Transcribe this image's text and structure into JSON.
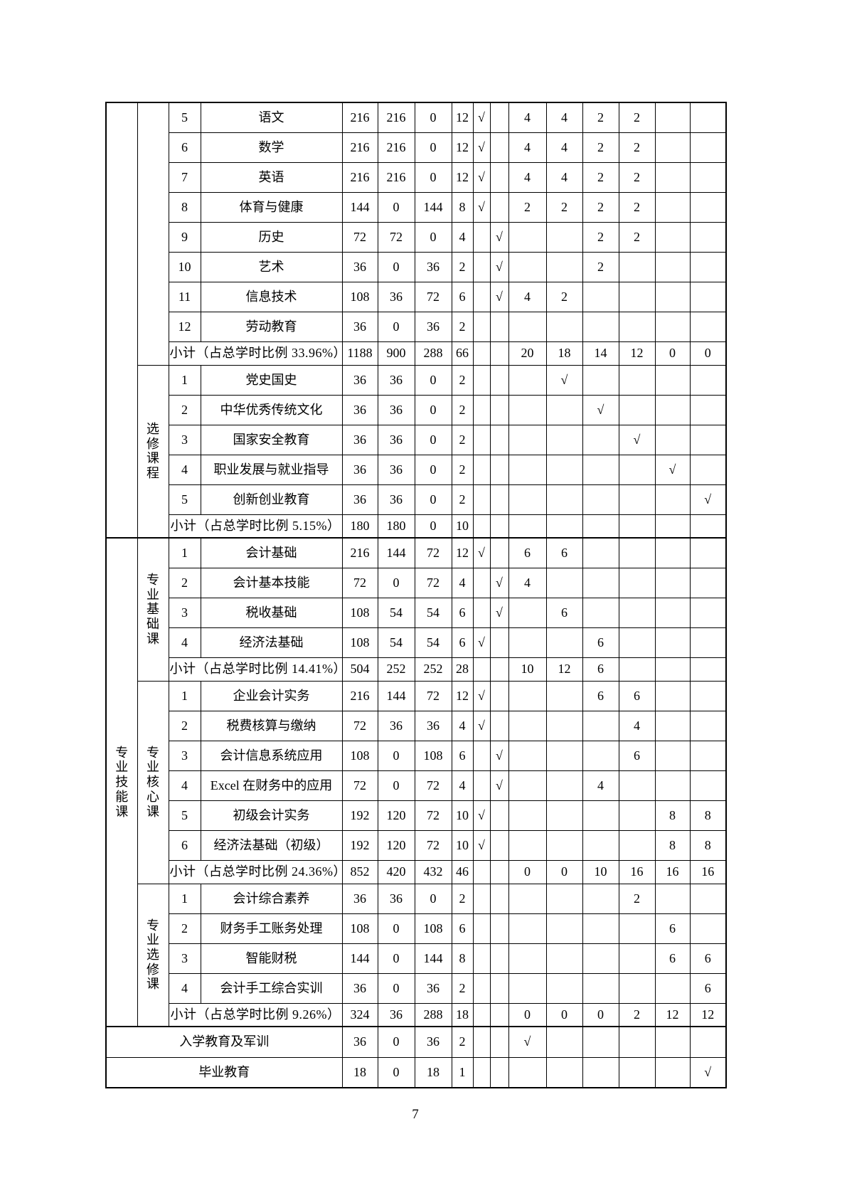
{
  "page": {
    "number": "7"
  },
  "table": {
    "rows": [
      {
        "type": "course",
        "spanA": {
          "rows": 15,
          "label": ""
        },
        "spanB": {
          "rows": 9,
          "label": ""
        },
        "num": "5",
        "name": "语文",
        "total": "216",
        "theory": "216",
        "practice": "0",
        "credits": "12",
        "exam": "√",
        "assess": "",
        "sems": [
          "4",
          "4",
          "2",
          "2",
          "",
          ""
        ]
      },
      {
        "type": "course",
        "num": "6",
        "name": "数学",
        "total": "216",
        "theory": "216",
        "practice": "0",
        "credits": "12",
        "exam": "√",
        "assess": "",
        "sems": [
          "4",
          "4",
          "2",
          "2",
          "",
          ""
        ]
      },
      {
        "type": "course",
        "num": "7",
        "name": "英语",
        "total": "216",
        "theory": "216",
        "practice": "0",
        "credits": "12",
        "exam": "√",
        "assess": "",
        "sems": [
          "4",
          "4",
          "2",
          "2",
          "",
          ""
        ]
      },
      {
        "type": "course",
        "num": "8",
        "name": "体育与健康",
        "total": "144",
        "theory": "0",
        "practice": "144",
        "credits": "8",
        "exam": "√",
        "assess": "",
        "sems": [
          "2",
          "2",
          "2",
          "2",
          "",
          ""
        ]
      },
      {
        "type": "course",
        "num": "9",
        "name": "历史",
        "total": "72",
        "theory": "72",
        "practice": "0",
        "credits": "4",
        "exam": "",
        "assess": "√",
        "sems": [
          "",
          "",
          "2",
          "2",
          "",
          ""
        ]
      },
      {
        "type": "course",
        "num": "10",
        "name": "艺术",
        "total": "36",
        "theory": "0",
        "practice": "36",
        "credits": "2",
        "exam": "",
        "assess": "√",
        "sems": [
          "",
          "",
          "2",
          "",
          "",
          ""
        ]
      },
      {
        "type": "course",
        "num": "11",
        "name": "信息技术",
        "total": "108",
        "theory": "36",
        "practice": "72",
        "credits": "6",
        "exam": "",
        "assess": "√",
        "sems": [
          "4",
          "2",
          "",
          "",
          "",
          ""
        ]
      },
      {
        "type": "course",
        "num": "12",
        "name": "劳动教育",
        "total": "36",
        "theory": "0",
        "practice": "36",
        "credits": "2",
        "exam": "",
        "assess": "",
        "sems": [
          "",
          "",
          "",
          "",
          "",
          ""
        ]
      },
      {
        "type": "subtotal",
        "label": "小计（占总学时比例 33.96%）",
        "total": "1188",
        "theory": "900",
        "practice": "288",
        "credits": "66",
        "exam": "",
        "assess": "",
        "sems": [
          "20",
          "18",
          "14",
          "12",
          "0",
          "0"
        ]
      },
      {
        "type": "course",
        "spanB": {
          "rows": 6,
          "label": "选\n修\n课\n程"
        },
        "num": "1",
        "name": "党史国史",
        "total": "36",
        "theory": "36",
        "practice": "0",
        "credits": "2",
        "exam": "",
        "assess": "",
        "sems": [
          "",
          "√",
          "",
          "",
          "",
          ""
        ]
      },
      {
        "type": "course",
        "num": "2",
        "name": "中华优秀传统文化",
        "total": "36",
        "theory": "36",
        "practice": "0",
        "credits": "2",
        "exam": "",
        "assess": "",
        "sems": [
          "",
          "",
          "√",
          "",
          "",
          ""
        ]
      },
      {
        "type": "course",
        "num": "3",
        "name": "国家安全教育",
        "total": "36",
        "theory": "36",
        "practice": "0",
        "credits": "2",
        "exam": "",
        "assess": "",
        "sems": [
          "",
          "",
          "",
          "√",
          "",
          ""
        ]
      },
      {
        "type": "course",
        "num": "4",
        "name": "职业发展与就业指导",
        "total": "36",
        "theory": "36",
        "practice": "0",
        "credits": "2",
        "exam": "",
        "assess": "",
        "sems": [
          "",
          "",
          "",
          "",
          "√",
          ""
        ]
      },
      {
        "type": "course",
        "num": "5",
        "name": "创新创业教育",
        "total": "36",
        "theory": "36",
        "practice": "0",
        "credits": "2",
        "exam": "",
        "assess": "",
        "sems": [
          "",
          "",
          "",
          "",
          "",
          "√"
        ]
      },
      {
        "type": "subtotal",
        "label": "小计（占总学时比例 5.15%）",
        "total": "180",
        "theory": "180",
        "practice": "0",
        "credits": "10",
        "exam": "",
        "assess": "",
        "sems": [
          "",
          "",
          "",
          "",
          "",
          ""
        ]
      },
      {
        "type": "course",
        "thick": true,
        "spanA": {
          "rows": 17,
          "label": "专\n业\n技\n能\n课"
        },
        "spanB": {
          "rows": 5,
          "label": "专\n业\n基\n础\n课"
        },
        "num": "1",
        "name": "会计基础",
        "total": "216",
        "theory": "144",
        "practice": "72",
        "credits": "12",
        "exam": "√",
        "assess": "",
        "sems": [
          "6",
          "6",
          "",
          "",
          "",
          ""
        ]
      },
      {
        "type": "course",
        "num": "2",
        "name": "会计基本技能",
        "total": "72",
        "theory": "0",
        "practice": "72",
        "credits": "4",
        "exam": "",
        "assess": "√",
        "sems": [
          "4",
          "",
          "",
          "",
          "",
          ""
        ]
      },
      {
        "type": "course",
        "num": "3",
        "name": "税收基础",
        "total": "108",
        "theory": "54",
        "practice": "54",
        "credits": "6",
        "exam": "",
        "assess": "√",
        "sems": [
          "",
          "6",
          "",
          "",
          "",
          ""
        ]
      },
      {
        "type": "course",
        "num": "4",
        "name": "经济法基础",
        "total": "108",
        "theory": "54",
        "practice": "54",
        "credits": "6",
        "exam": "√",
        "assess": "",
        "sems": [
          "",
          "",
          "6",
          "",
          "",
          ""
        ]
      },
      {
        "type": "subtotal",
        "label": "小计（占总学时比例 14.41%）",
        "total": "504",
        "theory": "252",
        "practice": "252",
        "credits": "28",
        "exam": "",
        "assess": "",
        "sems": [
          "10",
          "12",
          "6",
          "",
          "",
          ""
        ]
      },
      {
        "type": "course",
        "spanB": {
          "rows": 7,
          "label": "专\n业\n核\n心\n课"
        },
        "num": "1",
        "name": "企业会计实务",
        "total": "216",
        "theory": "144",
        "practice": "72",
        "credits": "12",
        "exam": "√",
        "assess": "",
        "sems": [
          "",
          "",
          "6",
          "6",
          "",
          ""
        ]
      },
      {
        "type": "course",
        "num": "2",
        "name": "税费核算与缴纳",
        "total": "72",
        "theory": "36",
        "practice": "36",
        "credits": "4",
        "exam": "√",
        "assess": "",
        "sems": [
          "",
          "",
          "",
          "4",
          "",
          ""
        ]
      },
      {
        "type": "course",
        "num": "3",
        "name": "会计信息系统应用",
        "total": "108",
        "theory": "0",
        "practice": "108",
        "credits": "6",
        "exam": "",
        "assess": "√",
        "sems": [
          "",
          "",
          "",
          "6",
          "",
          ""
        ]
      },
      {
        "type": "course",
        "num": "4",
        "name": "Excel 在财务中的应用",
        "total": "72",
        "theory": "0",
        "practice": "72",
        "credits": "4",
        "exam": "",
        "assess": "√",
        "sems": [
          "",
          "",
          "4",
          "",
          "",
          ""
        ]
      },
      {
        "type": "course",
        "num": "5",
        "name": "初级会计实务",
        "total": "192",
        "theory": "120",
        "practice": "72",
        "credits": "10",
        "exam": "√",
        "assess": "",
        "sems": [
          "",
          "",
          "",
          "",
          "8",
          "8"
        ]
      },
      {
        "type": "course",
        "num": "6",
        "name": "经济法基础（初级）",
        "total": "192",
        "theory": "120",
        "practice": "72",
        "credits": "10",
        "exam": "√",
        "assess": "",
        "sems": [
          "",
          "",
          "",
          "",
          "8",
          "8"
        ]
      },
      {
        "type": "subtotal",
        "label": "小计（占总学时比例 24.36%）",
        "total": "852",
        "theory": "420",
        "practice": "432",
        "credits": "46",
        "exam": "",
        "assess": "",
        "sems": [
          "0",
          "0",
          "10",
          "16",
          "16",
          "16"
        ]
      },
      {
        "type": "course",
        "spanB": {
          "rows": 5,
          "label": "专\n业\n选\n修\n课"
        },
        "num": "1",
        "name": "会计综合素养",
        "total": "36",
        "theory": "36",
        "practice": "0",
        "credits": "2",
        "exam": "",
        "assess": "",
        "sems": [
          "",
          "",
          "",
          "2",
          "",
          ""
        ]
      },
      {
        "type": "course",
        "num": "2",
        "name": "财务手工账务处理",
        "total": "108",
        "theory": "0",
        "practice": "108",
        "credits": "6",
        "exam": "",
        "assess": "",
        "sems": [
          "",
          "",
          "",
          "",
          "6",
          ""
        ]
      },
      {
        "type": "course",
        "num": "3",
        "name": "智能财税",
        "total": "144",
        "theory": "0",
        "practice": "144",
        "credits": "8",
        "exam": "",
        "assess": "",
        "sems": [
          "",
          "",
          "",
          "",
          "6",
          "6"
        ]
      },
      {
        "type": "course",
        "num": "4",
        "name": "会计手工综合实训",
        "total": "36",
        "theory": "0",
        "practice": "36",
        "credits": "2",
        "exam": "",
        "assess": "",
        "sems": [
          "",
          "",
          "",
          "",
          "",
          "6"
        ]
      },
      {
        "type": "subtotal",
        "label": "小计（占总学时比例 9.26%）",
        "total": "324",
        "theory": "36",
        "practice": "288",
        "credits": "18",
        "exam": "",
        "assess": "",
        "sems": [
          "0",
          "0",
          "0",
          "2",
          "12",
          "12"
        ]
      },
      {
        "type": "merged",
        "thick": true,
        "name": "入学教育及军训",
        "total": "36",
        "theory": "0",
        "practice": "36",
        "credits": "2",
        "exam": "",
        "assess": "",
        "sems": [
          "√",
          "",
          "",
          "",
          "",
          ""
        ]
      },
      {
        "type": "merged",
        "name": "毕业教育",
        "total": "18",
        "theory": "0",
        "practice": "18",
        "credits": "1",
        "exam": "",
        "assess": "",
        "sems": [
          "",
          "",
          "",
          "",
          "",
          "√"
        ]
      }
    ]
  }
}
